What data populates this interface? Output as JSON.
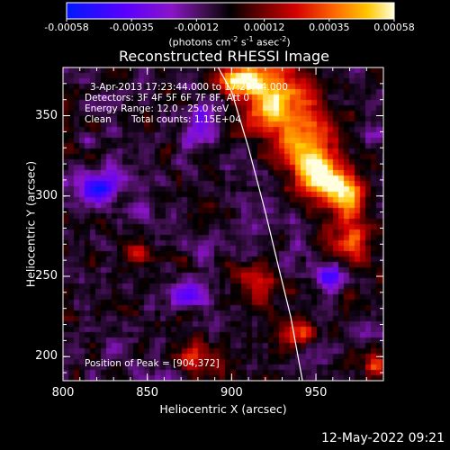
{
  "chart_data": {
    "type": "heatmap",
    "title": "Reconstructed RHESSI Image",
    "xlabel": "Heliocentric X (arcsec)",
    "ylabel": "Heliocentric Y (arcsec)",
    "xlim": [
      800,
      990
    ],
    "ylim": [
      185,
      380
    ],
    "x_ticks": [
      "800",
      "850",
      "900",
      "950"
    ],
    "x_tick_values": [
      800,
      850,
      900,
      950
    ],
    "y_ticks": [
      "200",
      "250",
      "300",
      "350"
    ],
    "y_tick_values": [
      200,
      250,
      300,
      350
    ],
    "colorbar": {
      "ticks": [
        "-0.00058",
        "-0.00035",
        "-0.00012",
        "0.00012",
        "0.00035",
        "0.00058"
      ],
      "tick_values": [
        -0.00058,
        -0.00035,
        -0.00012,
        0.00012,
        0.00035,
        0.00058
      ],
      "range": [
        -0.00058,
        0.00058
      ],
      "units_prefix": "(photons cm",
      "units_exp1": "-2",
      "units_mid1": " s",
      "units_exp2": "-1",
      "units_mid2": " asec",
      "units_exp3": "-2",
      "units_suffix": ")"
    },
    "annotations": {
      "time_range": "3-Apr-2013 17:23:44.000 to 17:29:44.000",
      "detectors": "Detectors: 3F 4F 5F 6F 7F 8F, Att 0",
      "energy": "Energy Range: 12.0 - 25.0 keV",
      "clean_label": "Clean",
      "counts": "Total counts: 1.15E+04",
      "peak": "Position of Peak = [904,372]"
    },
    "peak": [
      904,
      372
    ],
    "limb_curve": [
      [
        892,
        380
      ],
      [
        900,
        365
      ],
      [
        910,
        330
      ],
      [
        920,
        290
      ],
      [
        928,
        255
      ],
      [
        935,
        225
      ],
      [
        942,
        185
      ]
    ],
    "emission_sources": [
      {
        "x": 925,
        "y": 360,
        "amp": 0.00058,
        "sx": 14,
        "sy": 16
      },
      {
        "x": 945,
        "y": 330,
        "amp": 0.00048,
        "sx": 12,
        "sy": 14
      },
      {
        "x": 955,
        "y": 310,
        "amp": 0.0005,
        "sx": 10,
        "sy": 10
      },
      {
        "x": 968,
        "y": 300,
        "amp": 0.00045,
        "sx": 8,
        "sy": 10
      },
      {
        "x": 905,
        "y": 372,
        "amp": 0.0006,
        "sx": 8,
        "sy": 6
      },
      {
        "x": 940,
        "y": 215,
        "amp": 0.0004,
        "sx": 7,
        "sy": 6
      },
      {
        "x": 970,
        "y": 270,
        "amp": 0.00035,
        "sx": 8,
        "sy": 12
      },
      {
        "x": 915,
        "y": 245,
        "amp": 0.0003,
        "sx": 8,
        "sy": 10
      },
      {
        "x": 845,
        "y": 265,
        "amp": 0.00028,
        "sx": 5,
        "sy": 5
      },
      {
        "x": 880,
        "y": 200,
        "amp": 0.0003,
        "sx": 10,
        "sy": 6
      },
      {
        "x": 985,
        "y": 195,
        "amp": 0.00035,
        "sx": 5,
        "sy": 6
      }
    ],
    "negative_sources": [
      {
        "x": 820,
        "y": 305,
        "amp": -0.00048,
        "sx": 8,
        "sy": 8
      },
      {
        "x": 875,
        "y": 240,
        "amp": -0.00035,
        "sx": 8,
        "sy": 6
      },
      {
        "x": 960,
        "y": 250,
        "amp": -0.00038,
        "sx": 7,
        "sy": 7
      },
      {
        "x": 885,
        "y": 345,
        "amp": -0.00028,
        "sx": 6,
        "sy": 8
      }
    ]
  },
  "footer": {
    "timestamp": "12-May-2022 09:21"
  }
}
